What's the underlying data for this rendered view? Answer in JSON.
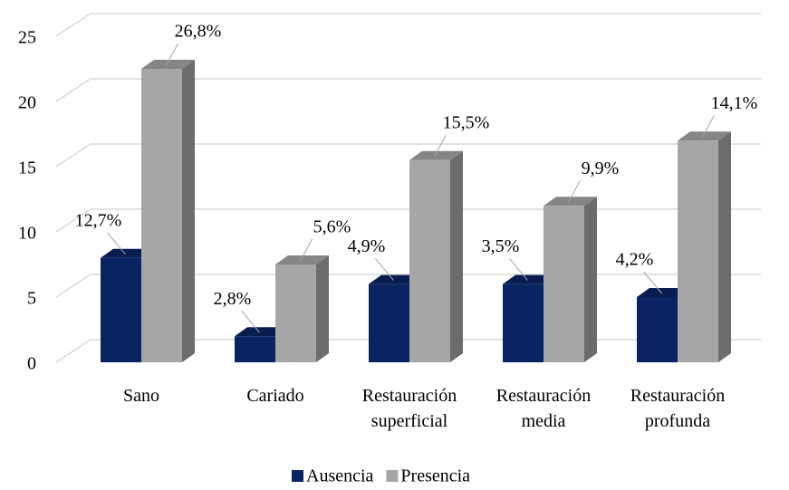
{
  "chart_data": {
    "type": "bar3d",
    "categories": [
      "Sano",
      "Cariado",
      "Restauración superficial",
      "Restauración media",
      "Restauración profunda"
    ],
    "series": [
      {
        "name": "Ausencia",
        "color": "#0a2463",
        "values": [
          8,
          2,
          6,
          6,
          5
        ],
        "labels": [
          "12,7%",
          "2,8%",
          "4,9%",
          "3,5%",
          "4,2%"
        ]
      },
      {
        "name": "Presencia",
        "color": "#a6a6a6",
        "values": [
          22.5,
          7.5,
          15.5,
          12,
          17
        ],
        "labels": [
          "26,8%",
          "5,6%",
          "15,5%",
          "9,9%",
          "14,1%"
        ]
      }
    ],
    "ylim": [
      0,
      25
    ],
    "yticks": [
      0,
      5,
      10,
      15,
      20,
      25
    ],
    "grid": true,
    "legend": "bottom"
  }
}
